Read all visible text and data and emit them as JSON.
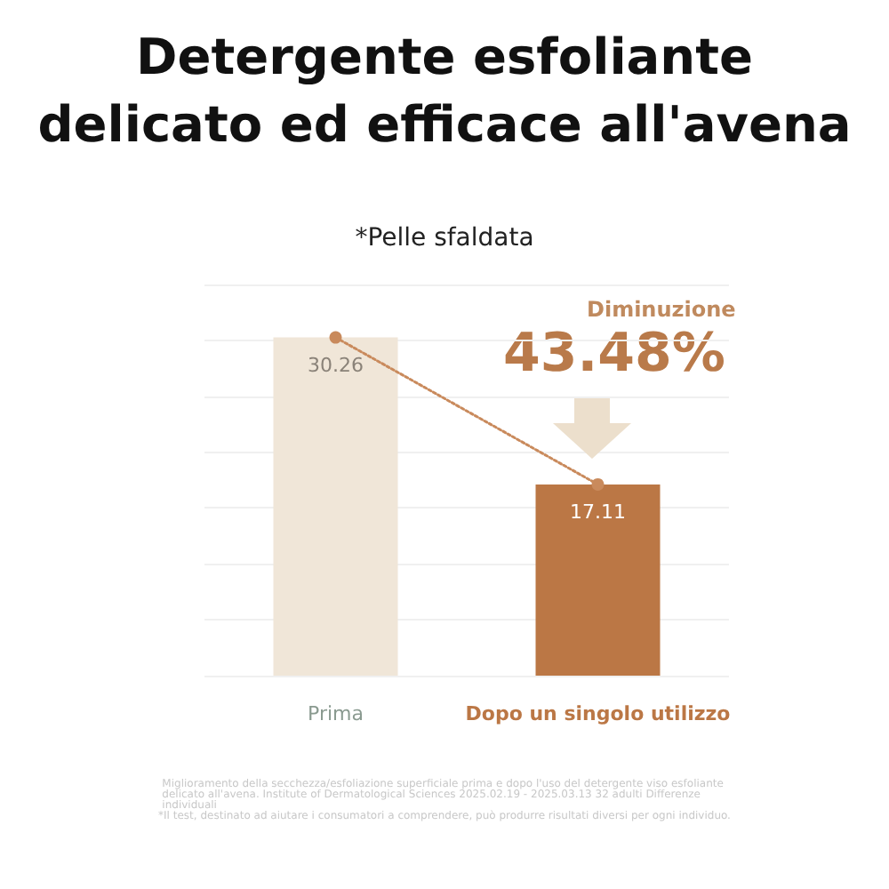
{
  "chart_data": {
    "type": "bar",
    "title": "Detergente esfoliante\ndelicato ed efficace all'avena",
    "subtitle": "*Pelle sfaldata",
    "categories": [
      "Prima",
      "Dopo un singolo utilizzo"
    ],
    "series": [
      {
        "colors": [
          "#f0e6d8",
          "#bb7745"
        ],
        "values": [
          30.26,
          17.11
        ],
        "value_labels": [
          "30.26",
          "17.11"
        ]
      },
      {
        "type": "line",
        "color": "#c98a5c",
        "values": [
          30.26,
          17.11
        ],
        "marker": "circle",
        "line_style": "dotted"
      }
    ],
    "grid": "y",
    "tick_labels": "x",
    "annotations": [
      "Diminuzione",
      "43.48%",
      "Miglioramento della secchezza/esfoliazione superficiale prima e dopo l'uso del detergente viso esfoliante delicato all'avena. Institute of Dermatological Sciences 2025.02.19 - 2025.03.13 32 adulti Differenze individuali",
      "*Il test, destinato ad aiutare i consumatori a comprendere, può produrre risultati diversi per ogni individuo."
    ]
  }
}
